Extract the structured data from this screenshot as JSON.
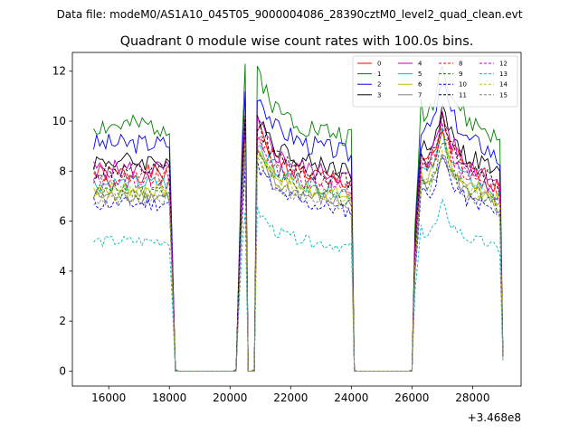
{
  "chart_data": {
    "type": "line",
    "suptitle": "Data file: modeM0/AS1A10_045T05_9000004086_28390cztM0_level2_quad_clean.evt",
    "title": "Quadrant 0 module wise count rates with 100.0s bins.",
    "xlabel": "",
    "ylabel": "",
    "x_offset_label": "+3.468e8",
    "xlim": [
      14800,
      29600
    ],
    "ylim": [
      -0.6,
      12.75
    ],
    "x_ticks": [
      16000,
      18000,
      20000,
      22000,
      24000,
      26000,
      28000
    ],
    "y_ticks": [
      0,
      2,
      4,
      6,
      8,
      10,
      12
    ],
    "x_range": [
      15500,
      29000
    ],
    "bin_size": 100,
    "gaps": [
      [
        18200,
        20200
      ],
      [
        20500,
        20800
      ],
      [
        24100,
        26000
      ]
    ],
    "profile_x": [
      15500,
      18000,
      18200,
      20200,
      20400,
      20500,
      20650,
      20800,
      20900,
      21500,
      22500,
      23500,
      24000,
      24100,
      26000,
      26100,
      26300,
      26500,
      26800,
      27000,
      27300,
      27800,
      28500,
      28900,
      29000
    ],
    "profile_f": [
      1.0,
      1.0,
      0.0,
      0.0,
      0.95,
      1.25,
      0.0,
      0.0,
      1.23,
      1.07,
      1.0,
      0.97,
      0.95,
      0.0,
      0.0,
      0.6,
      1.08,
      1.05,
      1.13,
      1.28,
      1.13,
      1.02,
      0.98,
      0.92,
      0.08
    ],
    "legend_location": "upper right",
    "legend_columns": 4,
    "series": [
      {
        "name": "0",
        "level": 7.9,
        "color": "#ff0000",
        "dash": false
      },
      {
        "name": "1",
        "level": 9.8,
        "color": "#008000",
        "dash": false
      },
      {
        "name": "2",
        "level": 9.1,
        "color": "#0000ff",
        "dash": false
      },
      {
        "name": "3",
        "level": 8.4,
        "color": "#000000",
        "dash": false
      },
      {
        "name": "4",
        "level": 8.1,
        "color": "#bf00bf",
        "dash": false
      },
      {
        "name": "5",
        "level": 7.5,
        "color": "#00bfbf",
        "dash": false
      },
      {
        "name": "6",
        "level": 7.3,
        "color": "#bfbf00",
        "dash": false
      },
      {
        "name": "7",
        "level": 7.0,
        "color": "#808080",
        "dash": false
      },
      {
        "name": "8",
        "level": 7.7,
        "color": "#ff0000",
        "dash": true
      },
      {
        "name": "9",
        "level": 7.2,
        "color": "#008000",
        "dash": true
      },
      {
        "name": "10",
        "level": 6.7,
        "color": "#0000ff",
        "dash": true
      },
      {
        "name": "11",
        "level": 8.0,
        "color": "#000000",
        "dash": true
      },
      {
        "name": "12",
        "level": 7.6,
        "color": "#bf00bf",
        "dash": true
      },
      {
        "name": "13",
        "level": 5.2,
        "color": "#00bfbf",
        "dash": true
      },
      {
        "name": "14",
        "level": 7.1,
        "color": "#bfbf00",
        "dash": true
      },
      {
        "name": "15",
        "level": 6.9,
        "color": "#808080",
        "dash": true
      }
    ]
  }
}
